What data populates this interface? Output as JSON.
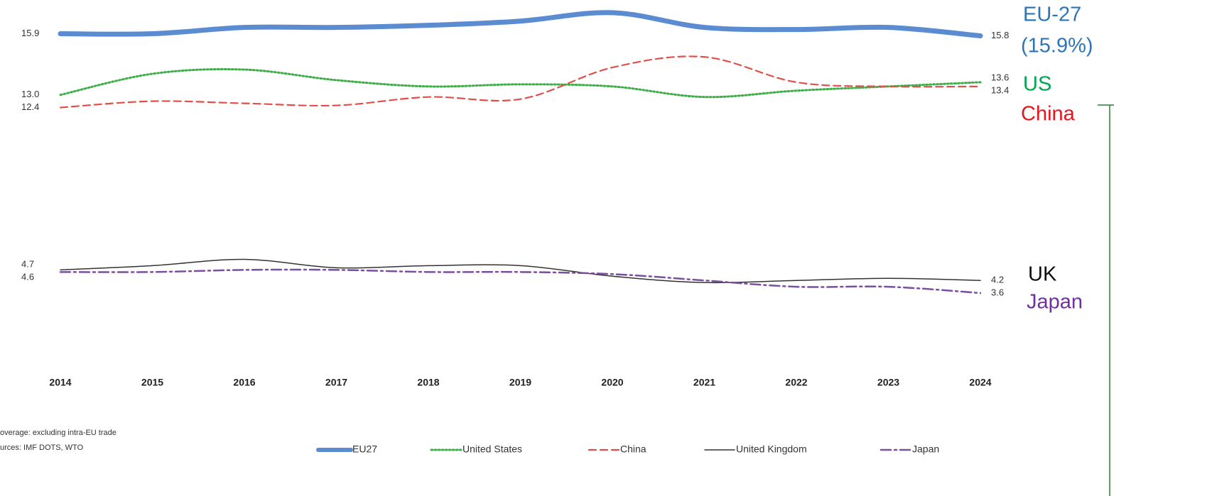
{
  "chart_data": {
    "type": "line",
    "x": [
      2014,
      2015,
      2016,
      2017,
      2018,
      2019,
      2020,
      2021,
      2022,
      2023,
      2024
    ],
    "ylim": [
      0,
      17.5
    ],
    "series": [
      {
        "name": "EU27",
        "color": "#5b8bd0",
        "width": 7,
        "dash": "solid",
        "values": [
          15.9,
          15.9,
          16.2,
          16.2,
          16.3,
          16.5,
          16.9,
          16.2,
          16.1,
          16.2,
          15.8
        ],
        "value_labels": [
          "15.9",
          null,
          null,
          null,
          null,
          null,
          null,
          null,
          null,
          null,
          "15.8"
        ]
      },
      {
        "name": "United States",
        "color": "#3fae49",
        "width": 3,
        "dash": "dotted",
        "values": [
          13.0,
          14.0,
          14.2,
          13.7,
          13.4,
          13.5,
          13.4,
          12.9,
          13.2,
          13.4,
          13.6
        ],
        "value_labels": [
          "13.0",
          null,
          null,
          null,
          null,
          null,
          null,
          null,
          null,
          null,
          "13.6"
        ]
      },
      {
        "name": "China",
        "color": "#e0504a",
        "width": 2.2,
        "dash": "dashed",
        "values": [
          12.4,
          12.7,
          12.6,
          12.5,
          12.9,
          12.8,
          14.3,
          14.8,
          13.6,
          13.4,
          13.4
        ],
        "value_labels": [
          "12.4",
          null,
          null,
          null,
          null,
          null,
          null,
          null,
          null,
          null,
          "13.4"
        ]
      },
      {
        "name": "United Kingdom",
        "color": "#333333",
        "width": 1.5,
        "dash": "solid",
        "values": [
          4.7,
          4.9,
          5.2,
          4.8,
          4.9,
          4.9,
          4.4,
          4.1,
          4.2,
          4.3,
          4.2
        ],
        "value_labels": [
          "4.7",
          null,
          null,
          null,
          null,
          null,
          null,
          null,
          null,
          null,
          "4.2"
        ]
      },
      {
        "name": "Japan",
        "color": "#7b4fa0",
        "width": 2.5,
        "dash": "dashdot",
        "values": [
          4.6,
          4.6,
          4.7,
          4.7,
          4.6,
          4.6,
          4.5,
          4.2,
          3.9,
          3.9,
          3.6
        ],
        "value_labels": [
          "4.6",
          null,
          null,
          null,
          null,
          null,
          null,
          null,
          null,
          null,
          "3.6"
        ]
      }
    ],
    "annotations": [
      {
        "text": "EU-27",
        "color": "#2e75b6"
      },
      {
        "text": "(15.9%)",
        "color": "#2e75b6"
      },
      {
        "text": "US",
        "color": "#00a550"
      },
      {
        "text": "China",
        "color": "#e8141c"
      },
      {
        "text": "UK",
        "color": "#111111"
      },
      {
        "text": "Japan",
        "color": "#7030a0"
      }
    ],
    "notes": [
      "overage: excluding intra-EU trade",
      "urces: IMF DOTS, WTO"
    ]
  }
}
